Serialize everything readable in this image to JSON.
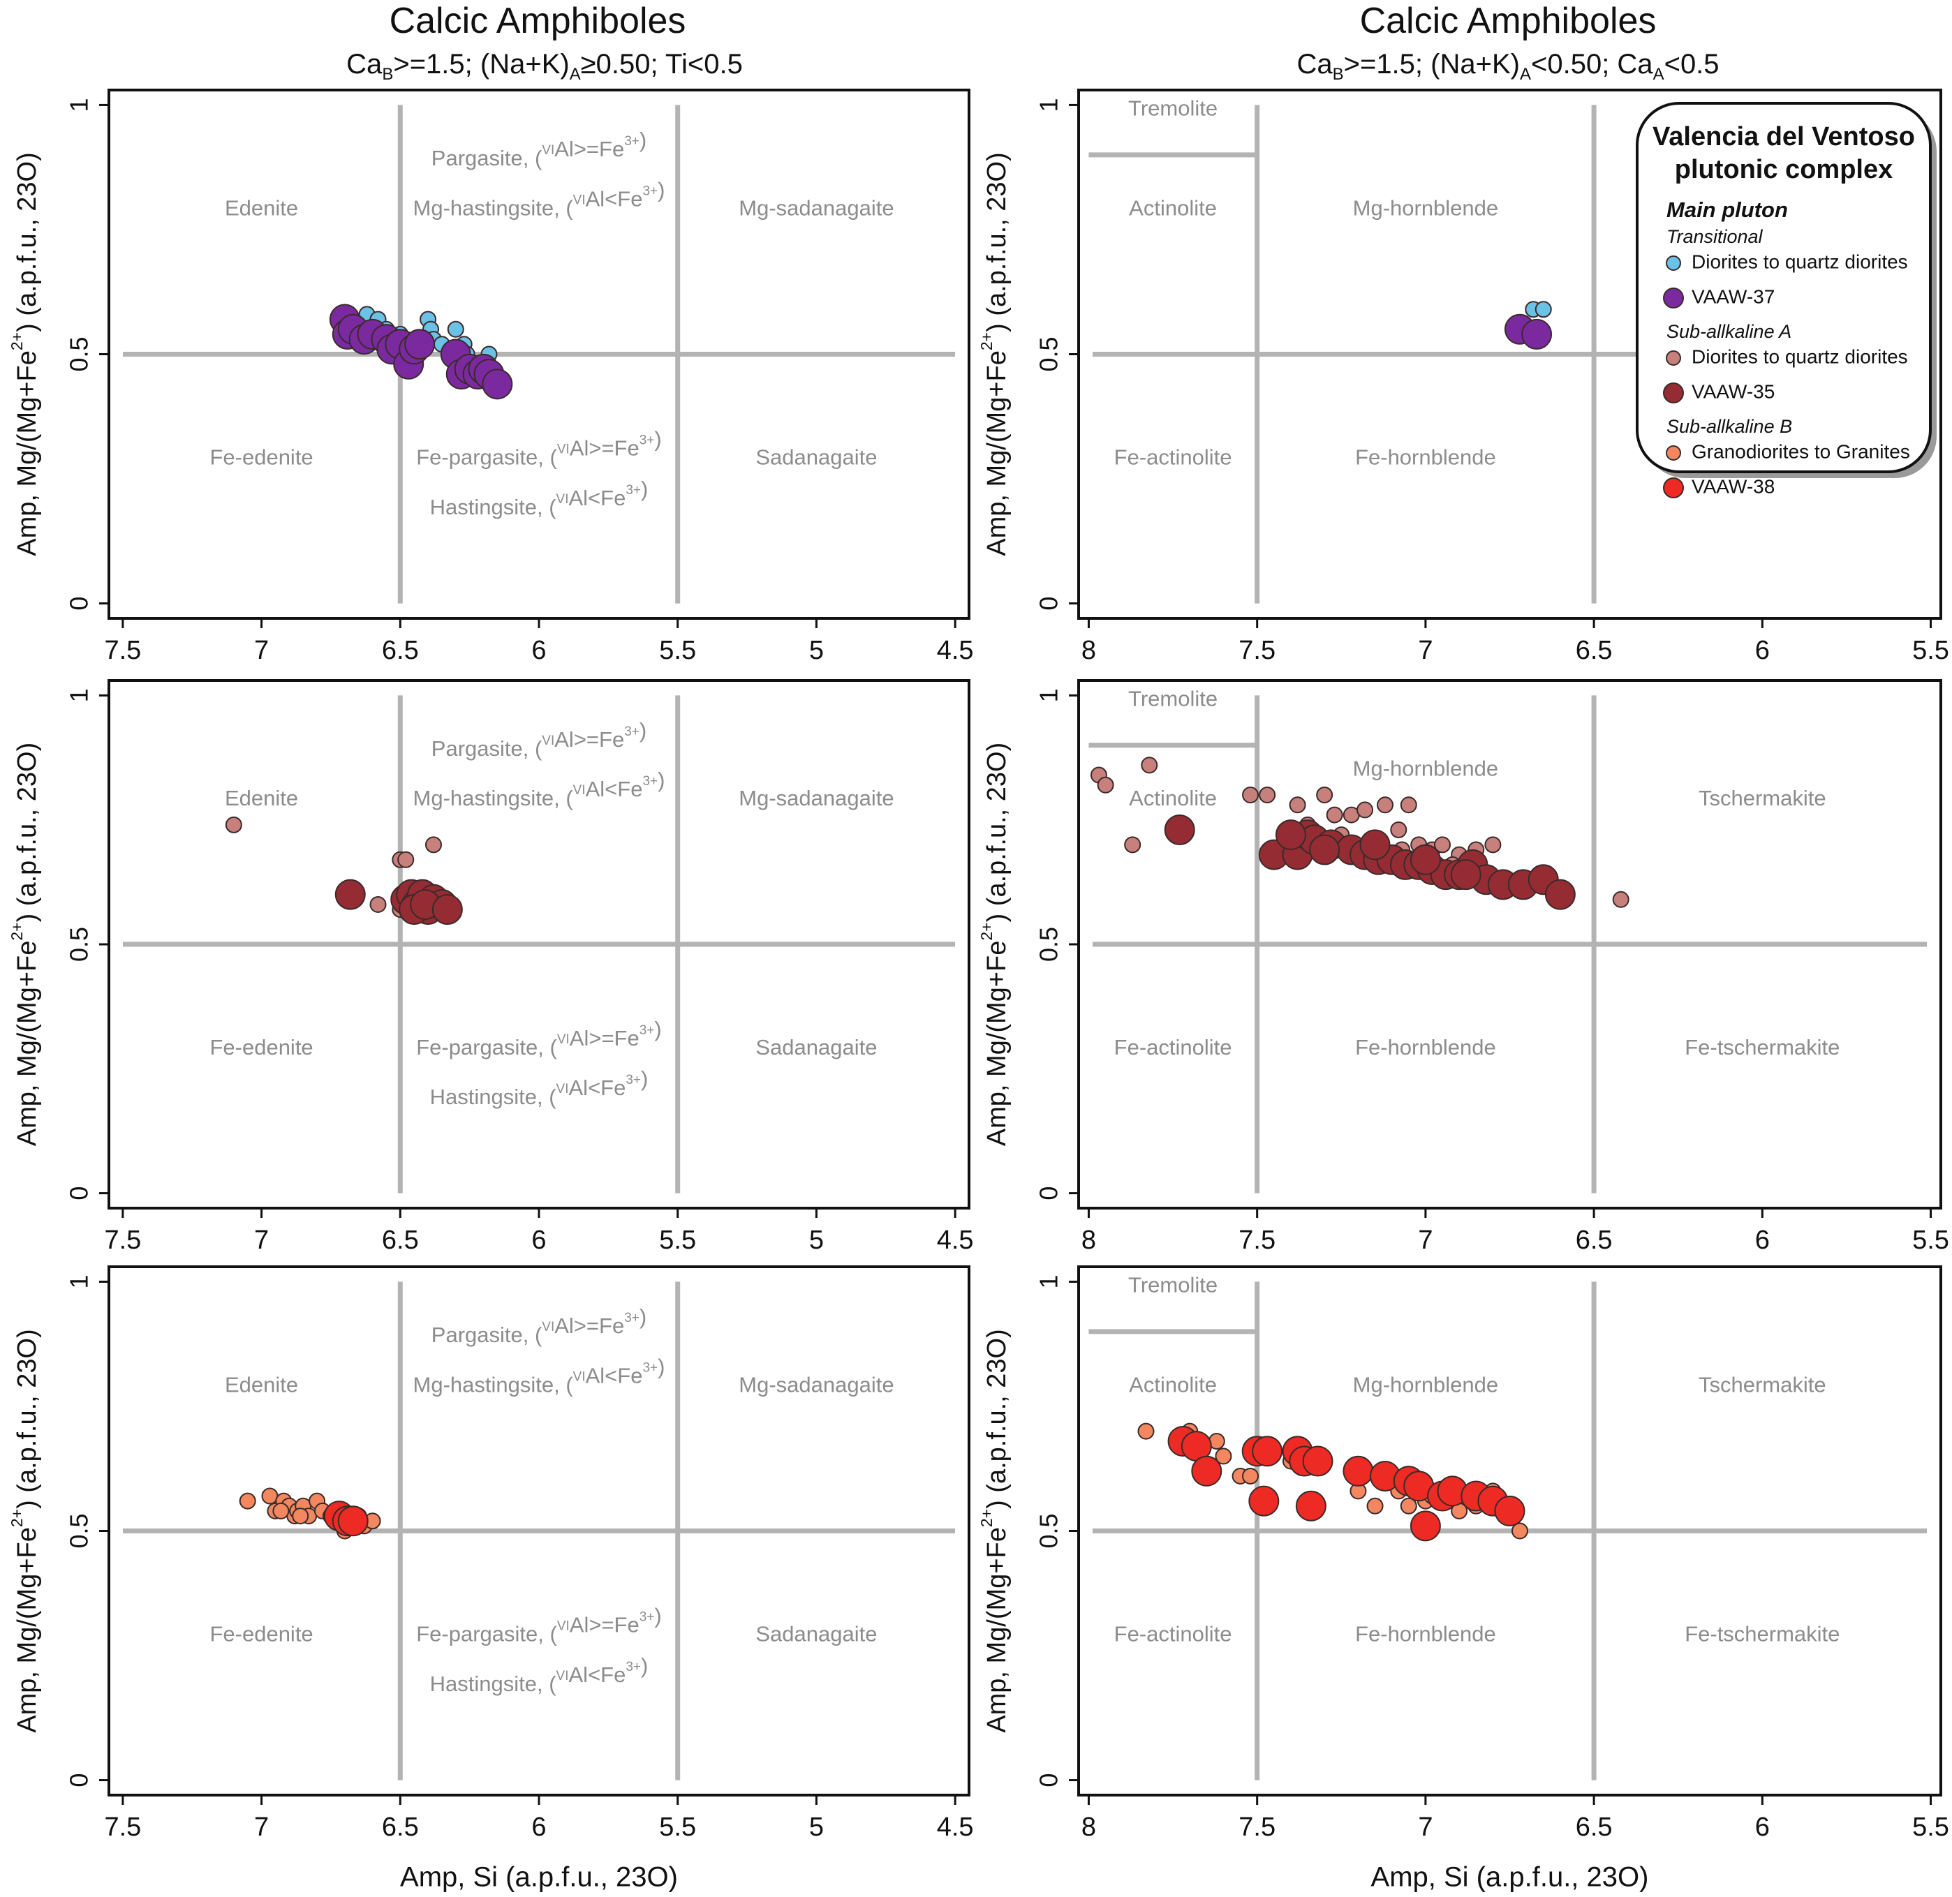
{
  "colors": {
    "grid": "#b3b3b3",
    "region_label": "#8c8c8c",
    "axis": "#111111",
    "transitional_samples": "#6bc1e6",
    "vaaw37": "#7a2a9e",
    "subA_samples": "#c7807c",
    "vaaw35": "#962c33",
    "subB_samples": "#f3875f",
    "vaaw38": "#ee2a24"
  },
  "columns": {
    "left": {
      "title": "Calcic Amphiboles",
      "subtitle": {
        "t1": "Ca",
        "s1": "B",
        "t2": ">=1.5; (Na+K)",
        "s2": "A",
        "t3": "≥0.50; Ti<0.5"
      }
    },
    "right": {
      "title": "Calcic Amphiboles",
      "subtitle": {
        "t1": "Ca",
        "s1": "B",
        "t2": ">=1.5; (Na+K)",
        "s2": "A",
        "t3": "<0.50; Ca",
        "s3": "A",
        "t4": "<0.5"
      }
    }
  },
  "axes_text": {
    "ylabel": "Amp, Mg/(Mg+Fe2+) (a.p.f.u., 23O)",
    "xlabel": "Amp, Si (a.p.f.u., 23O)"
  },
  "legend": {
    "title_line1": "Valencia del Ventoso",
    "title_line2": "plutonic complex",
    "group": "Main pluton",
    "items": [
      {
        "kind": "subhead",
        "label": "Transitional"
      },
      {
        "kind": "entry",
        "label": "Diorites to quartz diorites",
        "color": "#6bc1e6",
        "size": "small"
      },
      {
        "kind": "entry",
        "label": "VAAW-37",
        "color": "#7a2a9e",
        "size": "large"
      },
      {
        "kind": "subhead",
        "label": "Sub-allkaline A"
      },
      {
        "kind": "entry",
        "label": "Diorites to quartz diorites",
        "color": "#c7807c",
        "size": "small"
      },
      {
        "kind": "entry",
        "label": "VAAW-35",
        "color": "#962c33",
        "size": "large"
      },
      {
        "kind": "subhead",
        "label": "Sub-allkaline B"
      },
      {
        "kind": "entry",
        "label": "Granodiorites to Granites",
        "color": "#f3875f",
        "size": "small"
      },
      {
        "kind": "entry",
        "label": "VAAW-38",
        "color": "#ee2a24",
        "size": "large"
      }
    ]
  },
  "chart_data": [
    {
      "type": "scatter",
      "row": 1,
      "column": "left",
      "xlim": [
        7.55,
        4.45
      ],
      "ylim": [
        -0.03,
        1.03
      ],
      "xticks": [
        "7.5",
        "7",
        "6.5",
        "6",
        "5.5",
        "5",
        "4.5"
      ],
      "yticks": [
        "0",
        "0.5",
        "1"
      ],
      "dividers": [
        {
          "x": 6.5
        },
        {
          "x": 5.5
        },
        {
          "y": 0.5
        }
      ],
      "regions": [
        {
          "x": 7.0,
          "y": 0.79,
          "label": "Edenite"
        },
        {
          "x": 6.0,
          "y": 0.89,
          "label": "Pargasite, (VIAl>=Fe3+)"
        },
        {
          "x": 6.0,
          "y": 0.79,
          "label": "Mg-hastingsite, (VIAl<Fe3+)"
        },
        {
          "x": 5.0,
          "y": 0.79,
          "label": "Mg-sadanagaite"
        },
        {
          "x": 7.0,
          "y": 0.29,
          "label": "Fe-edenite"
        },
        {
          "x": 6.0,
          "y": 0.29,
          "label": "Fe-pargasite, (VIAl>=Fe3+)"
        },
        {
          "x": 6.0,
          "y": 0.19,
          "label": "Hastingsite, (VIAl<Fe3+)"
        },
        {
          "x": 5.0,
          "y": 0.29,
          "label": "Sadanagaite"
        }
      ],
      "series": [
        {
          "name": "Diorites to quartz diorites (Transitional)",
          "color": "#6bc1e6",
          "size": "small",
          "x": [
            6.62,
            6.58,
            6.55,
            6.5,
            6.48,
            6.45,
            6.4,
            6.39,
            6.38,
            6.3,
            6.27,
            6.26,
            6.22,
            6.18,
            6.17,
            6.6,
            6.52,
            6.44,
            6.35
          ],
          "y": [
            0.58,
            0.57,
            0.55,
            0.54,
            0.53,
            0.52,
            0.57,
            0.55,
            0.53,
            0.55,
            0.52,
            0.5,
            0.48,
            0.5,
            0.47,
            0.55,
            0.53,
            0.5,
            0.52
          ]
        },
        {
          "name": "VAAW-37",
          "color": "#7a2a9e",
          "size": "large",
          "x": [
            6.7,
            6.69,
            6.67,
            6.63,
            6.6,
            6.55,
            6.53,
            6.5,
            6.47,
            6.45,
            6.43,
            6.3,
            6.28,
            6.25,
            6.22,
            6.2,
            6.18,
            6.15
          ],
          "y": [
            0.57,
            0.54,
            0.55,
            0.53,
            0.54,
            0.53,
            0.51,
            0.52,
            0.48,
            0.51,
            0.52,
            0.5,
            0.46,
            0.47,
            0.46,
            0.47,
            0.46,
            0.44
          ]
        }
      ]
    },
    {
      "type": "scatter",
      "row": 1,
      "column": "right",
      "xlim": [
        8.03,
        5.47
      ],
      "ylim": [
        -0.03,
        1.03
      ],
      "xticks": [
        "8",
        "7.5",
        "7",
        "6.5",
        "6",
        "5.5"
      ],
      "yticks": [
        "0",
        "0.5",
        "1"
      ],
      "dividers": [
        {
          "x": 7.5
        },
        {
          "x": 6.5
        },
        {
          "y": 0.5
        },
        {
          "y": 0.9,
          "x_range": [
            8.0,
            7.5
          ]
        }
      ],
      "regions": [
        {
          "x": 7.75,
          "y": 0.99,
          "label": "Tremolite"
        },
        {
          "x": 7.75,
          "y": 0.79,
          "label": "Actinolite"
        },
        {
          "x": 7.0,
          "y": 0.79,
          "label": "Mg-hornblende"
        },
        {
          "x": 7.75,
          "y": 0.29,
          "label": "Fe-actinolite"
        },
        {
          "x": 7.0,
          "y": 0.29,
          "label": "Fe-hornblende"
        }
      ],
      "series": [
        {
          "name": "Diorites to quartz diorites (Transitional)",
          "color": "#6bc1e6",
          "size": "small",
          "x": [
            6.68,
            6.65
          ],
          "y": [
            0.59,
            0.59
          ]
        },
        {
          "name": "VAAW-37",
          "color": "#7a2a9e",
          "size": "large",
          "x": [
            6.72,
            6.67
          ],
          "y": [
            0.55,
            0.54
          ]
        }
      ]
    },
    {
      "type": "scatter",
      "row": 2,
      "column": "left",
      "xlim": [
        7.55,
        4.45
      ],
      "ylim": [
        -0.03,
        1.03
      ],
      "xticks": [
        "7.5",
        "7",
        "6.5",
        "6",
        "5.5",
        "5",
        "4.5"
      ],
      "yticks": [
        "0",
        "0.5",
        "1"
      ],
      "dividers": [
        {
          "x": 6.5
        },
        {
          "x": 5.5
        },
        {
          "y": 0.5
        }
      ],
      "regions": [
        {
          "x": 7.0,
          "y": 0.79,
          "label": "Edenite"
        },
        {
          "x": 6.0,
          "y": 0.89,
          "label": "Pargasite, (VIAl>=Fe3+)"
        },
        {
          "x": 6.0,
          "y": 0.79,
          "label": "Mg-hastingsite, (VIAl<Fe3+)"
        },
        {
          "x": 5.0,
          "y": 0.79,
          "label": "Mg-sadanagaite"
        },
        {
          "x": 7.0,
          "y": 0.29,
          "label": "Fe-edenite"
        },
        {
          "x": 6.0,
          "y": 0.29,
          "label": "Fe-pargasite, (VIAl>=Fe3+)"
        },
        {
          "x": 6.0,
          "y": 0.19,
          "label": "Hastingsite, (VIAl<Fe3+)"
        },
        {
          "x": 5.0,
          "y": 0.29,
          "label": "Sadanagaite"
        }
      ],
      "series": [
        {
          "name": "Diorites to quartz diorites (Sub-allkaline A)",
          "color": "#c7807c",
          "size": "small",
          "x": [
            7.1,
            6.68,
            6.58,
            6.5,
            6.48,
            6.38,
            6.45,
            6.42,
            6.4,
            6.35,
            6.5,
            6.44
          ],
          "y": [
            0.74,
            0.61,
            0.58,
            0.67,
            0.67,
            0.7,
            0.59,
            0.6,
            0.57,
            0.58,
            0.57,
            0.56
          ]
        },
        {
          "name": "VAAW-35",
          "color": "#962c33",
          "size": "large",
          "x": [
            6.68,
            6.48,
            6.46,
            6.44,
            6.42,
            6.4,
            6.38,
            6.35,
            6.45,
            6.41,
            6.33
          ],
          "y": [
            0.6,
            0.59,
            0.6,
            0.58,
            0.6,
            0.57,
            0.59,
            0.58,
            0.57,
            0.58,
            0.57
          ]
        }
      ]
    },
    {
      "type": "scatter",
      "row": 2,
      "column": "right",
      "xlim": [
        8.03,
        5.47
      ],
      "ylim": [
        -0.03,
        1.03
      ],
      "xticks": [
        "8",
        "7.5",
        "7",
        "6.5",
        "6",
        "5.5"
      ],
      "yticks": [
        "0",
        "0.5",
        "1"
      ],
      "dividers": [
        {
          "x": 7.5
        },
        {
          "x": 6.5
        },
        {
          "y": 0.5
        },
        {
          "y": 0.9,
          "x_range": [
            8.0,
            7.5
          ]
        }
      ],
      "regions": [
        {
          "x": 7.75,
          "y": 0.99,
          "label": "Tremolite"
        },
        {
          "x": 7.75,
          "y": 0.79,
          "label": "Actinolite"
        },
        {
          "x": 7.0,
          "y": 0.85,
          "label": "Mg-hornblende"
        },
        {
          "x": 6.0,
          "y": 0.79,
          "label": "Tschermakite"
        },
        {
          "x": 7.75,
          "y": 0.29,
          "label": "Fe-actinolite"
        },
        {
          "x": 7.0,
          "y": 0.29,
          "label": "Fe-hornblende"
        },
        {
          "x": 6.0,
          "y": 0.29,
          "label": "Fe-tschermakite"
        }
      ],
      "series": [
        {
          "name": "Diorites to quartz diorites (Sub-allkaline A)",
          "color": "#c7807c",
          "size": "small",
          "x": [
            7.97,
            7.95,
            7.87,
            7.82,
            7.52,
            7.47,
            7.38,
            7.3,
            7.27,
            7.22,
            7.18,
            7.12,
            7.08,
            7.05,
            7.02,
            6.98,
            6.95,
            6.9,
            6.85,
            6.8,
            6.42,
            7.35,
            7.25,
            7.15,
            7.07,
            6.92
          ],
          "y": [
            0.84,
            0.82,
            0.7,
            0.86,
            0.8,
            0.8,
            0.78,
            0.8,
            0.76,
            0.76,
            0.77,
            0.78,
            0.73,
            0.78,
            0.7,
            0.69,
            0.7,
            0.68,
            0.69,
            0.7,
            0.59,
            0.74,
            0.72,
            0.71,
            0.69,
            0.66
          ]
        },
        {
          "name": "VAAW-35",
          "color": "#962c33",
          "size": "large",
          "x": [
            7.73,
            7.45,
            7.38,
            7.35,
            7.33,
            7.28,
            7.22,
            7.18,
            7.14,
            7.1,
            7.06,
            7.02,
            6.98,
            6.94,
            6.9,
            6.86,
            6.82,
            6.77,
            6.71,
            6.65,
            6.6,
            7.4,
            7.15,
            6.88,
            7.3,
            7.0
          ],
          "y": [
            0.73,
            0.68,
            0.68,
            0.72,
            0.71,
            0.7,
            0.69,
            0.68,
            0.67,
            0.67,
            0.66,
            0.66,
            0.65,
            0.64,
            0.64,
            0.66,
            0.63,
            0.62,
            0.62,
            0.63,
            0.6,
            0.72,
            0.7,
            0.64,
            0.69,
            0.67
          ]
        }
      ]
    },
    {
      "type": "scatter",
      "row": 3,
      "column": "left",
      "xlim": [
        7.55,
        4.45
      ],
      "ylim": [
        -0.03,
        1.03
      ],
      "xticks": [
        "7.5",
        "7",
        "6.5",
        "6",
        "5.5",
        "5",
        "4.5"
      ],
      "yticks": [
        "0",
        "0.5",
        "1"
      ],
      "dividers": [
        {
          "x": 6.5
        },
        {
          "x": 5.5
        },
        {
          "y": 0.5
        }
      ],
      "regions": [
        {
          "x": 7.0,
          "y": 0.79,
          "label": "Edenite"
        },
        {
          "x": 6.0,
          "y": 0.89,
          "label": "Pargasite, (VIAl>=Fe3+)"
        },
        {
          "x": 6.0,
          "y": 0.79,
          "label": "Mg-hastingsite, (VIAl<Fe3+)"
        },
        {
          "x": 5.0,
          "y": 0.79,
          "label": "Mg-sadanagaite"
        },
        {
          "x": 7.0,
          "y": 0.29,
          "label": "Fe-edenite"
        },
        {
          "x": 6.0,
          "y": 0.29,
          "label": "Fe-pargasite, (VIAl>=Fe3+)"
        },
        {
          "x": 6.0,
          "y": 0.19,
          "label": "Hastingsite, (VIAl<Fe3+)"
        },
        {
          "x": 5.0,
          "y": 0.29,
          "label": "Sadanagaite"
        }
      ],
      "series": [
        {
          "name": "Granodiorites to Granites (Sub-allkaline B)",
          "color": "#f3875f",
          "size": "small",
          "x": [
            7.05,
            6.97,
            6.95,
            6.92,
            6.9,
            6.88,
            6.87,
            6.85,
            6.83,
            6.8,
            6.78,
            6.75,
            6.72,
            6.7,
            6.68,
            6.65,
            6.63,
            6.6,
            6.93,
            6.86
          ],
          "y": [
            0.56,
            0.57,
            0.54,
            0.56,
            0.55,
            0.53,
            0.54,
            0.55,
            0.53,
            0.56,
            0.54,
            0.53,
            0.52,
            0.5,
            0.51,
            0.53,
            0.51,
            0.52,
            0.54,
            0.53
          ]
        },
        {
          "name": "VAAW-38",
          "color": "#ee2a24",
          "size": "large",
          "x": [
            6.72,
            6.69,
            6.67
          ],
          "y": [
            0.53,
            0.52,
            0.52
          ]
        }
      ]
    },
    {
      "type": "scatter",
      "row": 3,
      "column": "right",
      "xlim": [
        8.03,
        5.47
      ],
      "ylim": [
        -0.03,
        1.03
      ],
      "xticks": [
        "8",
        "7.5",
        "7",
        "6.5",
        "6",
        "5.5"
      ],
      "yticks": [
        "0",
        "0.5",
        "1"
      ],
      "dividers": [
        {
          "x": 7.5
        },
        {
          "x": 6.5
        },
        {
          "y": 0.5
        },
        {
          "y": 0.9,
          "x_range": [
            8.0,
            7.5
          ]
        }
      ],
      "regions": [
        {
          "x": 7.75,
          "y": 0.99,
          "label": "Tremolite"
        },
        {
          "x": 7.75,
          "y": 0.79,
          "label": "Actinolite"
        },
        {
          "x": 7.0,
          "y": 0.79,
          "label": "Mg-hornblende"
        },
        {
          "x": 6.0,
          "y": 0.79,
          "label": "Tschermakite"
        },
        {
          "x": 7.75,
          "y": 0.29,
          "label": "Fe-actinolite"
        },
        {
          "x": 7.0,
          "y": 0.29,
          "label": "Fe-hornblende"
        },
        {
          "x": 6.0,
          "y": 0.29,
          "label": "Fe-tschermakite"
        }
      ],
      "series": [
        {
          "name": "Granodiorites to Granites (Sub-allkaline B)",
          "color": "#f3875f",
          "size": "small",
          "x": [
            7.83,
            7.7,
            7.62,
            7.6,
            7.55,
            7.52,
            7.4,
            7.35,
            7.2,
            7.15,
            7.1,
            7.05,
            7.0,
            6.95,
            6.9,
            6.85,
            6.8,
            6.75,
            6.72,
            7.08,
            6.98
          ],
          "y": [
            0.7,
            0.7,
            0.68,
            0.65,
            0.61,
            0.61,
            0.64,
            0.65,
            0.58,
            0.55,
            0.6,
            0.55,
            0.56,
            0.56,
            0.54,
            0.55,
            0.58,
            0.55,
            0.5,
            0.58,
            0.57
          ]
        },
        {
          "name": "VAAW-38",
          "color": "#ee2a24",
          "size": "large",
          "x": [
            7.72,
            7.68,
            7.65,
            7.5,
            7.47,
            7.38,
            7.36,
            7.32,
            7.34,
            7.2,
            7.12,
            7.05,
            7.02,
            7.0,
            6.95,
            6.92,
            6.85,
            6.8,
            6.75,
            7.48
          ],
          "y": [
            0.68,
            0.67,
            0.62,
            0.66,
            0.66,
            0.66,
            0.64,
            0.64,
            0.55,
            0.62,
            0.61,
            0.6,
            0.59,
            0.51,
            0.57,
            0.58,
            0.57,
            0.56,
            0.54,
            0.56
          ]
        }
      ]
    }
  ]
}
